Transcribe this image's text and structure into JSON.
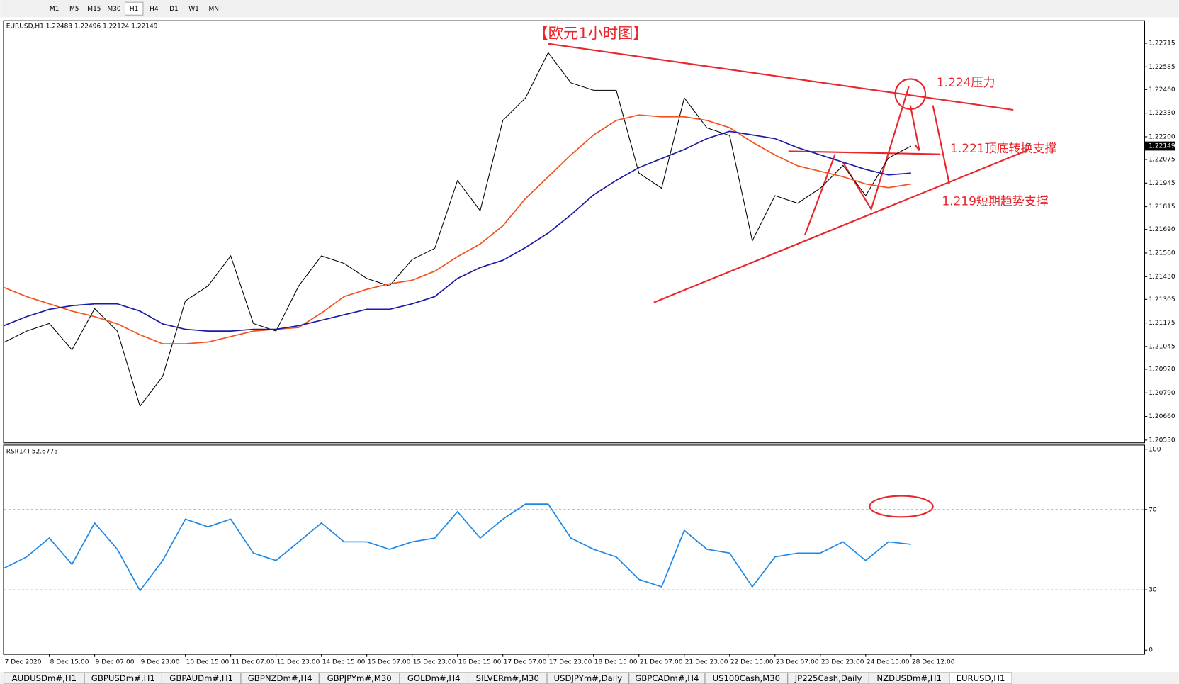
{
  "toolbar": {
    "timeframes": [
      "M1",
      "M5",
      "M15",
      "M30",
      "H1",
      "H4",
      "D1",
      "W1",
      "MN"
    ]
  },
  "tabs": [
    "AUDUSDm#,H1",
    "GBPUSDm#,H1",
    "GBPAUDm#,H1",
    "GBPNZDm#,H4",
    "GBPJPYm#,M30",
    "GOLDm#,H4",
    "SILVERm#,M30",
    "USDJPYm#,Daily",
    "GBPCADm#,H4",
    "US100Cash,M30",
    "JP225Cash,Daily",
    "NZDUSDm#,H1",
    "EURUSD,H1"
  ],
  "chart_data": [
    {
      "type": "line",
      "title": "EURUSD,H1  1.22483 1.22496 1.22124 1.22149",
      "annotations": [
        "【欧元1小时图】",
        "1.224压力",
        "1.221顶底转换支撑",
        "1.219短期趋势支撑"
      ],
      "last_price": 1.22149,
      "categories": [
        "7 Dec 2020",
        null,
        "8 Dec 15:00",
        null,
        "9 Dec 07:00",
        null,
        "9 Dec 23:00",
        null,
        "10 Dec 15:00",
        null,
        "11 Dec 07:00",
        null,
        "11 Dec 23:00",
        null,
        "14 Dec 15:00",
        null,
        "15 Dec 07:00",
        null,
        "15 Dec 23:00",
        null,
        "16 Dec 15:00",
        null,
        "17 Dec 07:00",
        null,
        "17 Dec 23:00",
        null,
        "18 Dec 15:00",
        null,
        "21 Dec 07:00",
        null,
        "21 Dec 23:00",
        null,
        "22 Dec 15:00",
        null,
        "23 Dec 07:00",
        null,
        "23 Dec 23:00",
        null,
        "24 Dec 15:00",
        null,
        "28 Dec 12:00"
      ],
      "series": [
        {
          "color": "#000000",
          "values": [
            1.21068,
            1.2113,
            1.21172,
            1.21027,
            1.21254,
            1.2113,
            1.20716,
            1.20881,
            1.21296,
            1.21379,
            1.21544,
            1.21172,
            1.2113,
            1.21379,
            1.21544,
            1.21503,
            1.2142,
            1.21379,
            1.21524,
            1.21586,
            1.21959,
            1.21793,
            1.2229,
            1.22414,
            1.22663,
            1.22497,
            1.22456,
            1.22456,
            1.22,
            1.21917,
            1.22414,
            1.22249,
            1.22207,
            1.21627,
            1.21876,
            1.21834,
            1.21917,
            1.22042,
            1.21876,
            1.22083,
            1.22149
          ]
        },
        {
          "color": "#f4511e",
          "values": [
            1.2137,
            1.2132,
            1.2128,
            1.2124,
            1.2121,
            1.2117,
            1.2111,
            1.2106,
            1.2106,
            1.2107,
            1.211,
            1.2113,
            1.2114,
            1.2115,
            1.2123,
            1.2132,
            1.2136,
            1.2139,
            1.2141,
            1.2146,
            1.2154,
            1.2161,
            1.2171,
            1.2186,
            1.2198,
            1.221,
            1.2221,
            1.2229,
            1.2232,
            1.2231,
            1.2231,
            1.2229,
            1.2225,
            1.2217,
            1.221,
            1.2204,
            1.2201,
            1.2198,
            1.2194,
            1.2192,
            1.2194
          ]
        },
        {
          "color": "#1a1aa6",
          "values": [
            1.2116,
            1.2121,
            1.2125,
            1.2127,
            1.2128,
            1.2128,
            1.2124,
            1.2117,
            1.2114,
            1.2113,
            1.2113,
            1.2114,
            1.2114,
            1.2116,
            1.2119,
            1.2122,
            1.2125,
            1.2125,
            1.2128,
            1.2132,
            1.2142,
            1.2148,
            1.2152,
            1.2159,
            1.2167,
            1.2177,
            1.2188,
            1.2196,
            1.2203,
            1.2208,
            1.2213,
            1.2219,
            1.2223,
            1.2221,
            1.2219,
            1.2214,
            1.221,
            1.2206,
            1.2202,
            1.2199,
            1.22
          ]
        }
      ],
      "ylim": [
        1.20517,
        1.22837
      ],
      "yticks": [
        {
          "value": 1.22715,
          "label": "1.22715"
        },
        {
          "value": 1.22585,
          "label": "1.22585"
        },
        {
          "value": 1.2246,
          "label": "1.22460"
        },
        {
          "value": 1.2233,
          "label": "1.22330"
        },
        {
          "value": 1.222,
          "label": "1.22200"
        },
        {
          "value": 1.22075,
          "label": "1.22075"
        },
        {
          "value": 1.21945,
          "label": "1.21945"
        },
        {
          "value": 1.21815,
          "label": "1.21815"
        },
        {
          "value": 1.2169,
          "label": "1.21690"
        },
        {
          "value": 1.2156,
          "label": "1.21560"
        },
        {
          "value": 1.2143,
          "label": "1.21430"
        },
        {
          "value": 1.21305,
          "label": "1.21305"
        },
        {
          "value": 1.21175,
          "label": "1.21175"
        },
        {
          "value": 1.21045,
          "label": "1.21045"
        },
        {
          "value": 1.2092,
          "label": "1.20920"
        },
        {
          "value": 1.2079,
          "label": "1.20790"
        },
        {
          "value": 1.2066,
          "label": "1.20660"
        },
        {
          "value": 1.2053,
          "label": "1.20530"
        }
      ],
      "grid": false
    },
    {
      "type": "line",
      "title": "RSI(14) 52.6773",
      "series": [
        {
          "color": "#1e88e5",
          "values": [
            40.8,
            46.4,
            55.8,
            42.7,
            63.3,
            50.2,
            29.6,
            44.6,
            65.2,
            61.4,
            65.2,
            48.3,
            44.6,
            53.9,
            63.3,
            53.9,
            53.9,
            50.2,
            53.9,
            55.8,
            68.9,
            55.8,
            65.2,
            72.7,
            72.7,
            55.8,
            50.2,
            46.4,
            35.2,
            31.5,
            59.6,
            50.2,
            48.3,
            31.5,
            46.4,
            48.3,
            48.3,
            53.9,
            44.6,
            53.9,
            52.6773
          ]
        }
      ],
      "ylim": [
        0,
        100
      ],
      "yticks": [
        0,
        30,
        70,
        100
      ],
      "grid_ticks": [
        30,
        70
      ]
    }
  ]
}
